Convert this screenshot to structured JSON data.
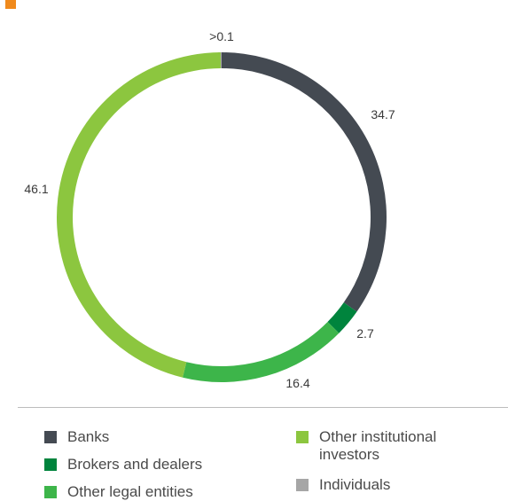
{
  "colors": {
    "accent": "#f08a1c",
    "banks": "#444a52",
    "brokers": "#00843d",
    "other_legal": "#3db54a",
    "other_institutional": "#8cc63f",
    "individuals": "#a6a6a6"
  },
  "chart_data": {
    "type": "pie",
    "style": "donut",
    "title": "",
    "unit": "%",
    "series": [
      {
        "key": "individuals",
        "name": "Individuals",
        "value": 0.1,
        "label": ">0.1"
      },
      {
        "key": "banks",
        "name": "Banks",
        "value": 34.7,
        "label": "34.7"
      },
      {
        "key": "brokers",
        "name": "Brokers and dealers",
        "value": 2.7,
        "label": "2.7"
      },
      {
        "key": "other_legal",
        "name": "Other legal entities",
        "value": 16.4,
        "label": "16.4"
      },
      {
        "key": "other_institutional",
        "name": "Other institutional investors",
        "value": 46.1,
        "label": "46.1"
      }
    ]
  },
  "legend": {
    "banks": "Banks",
    "brokers": "Brokers and dealers",
    "other_legal": "Other legal entities",
    "other_institutional": "Other institutional investors",
    "individuals": "Individuals"
  }
}
